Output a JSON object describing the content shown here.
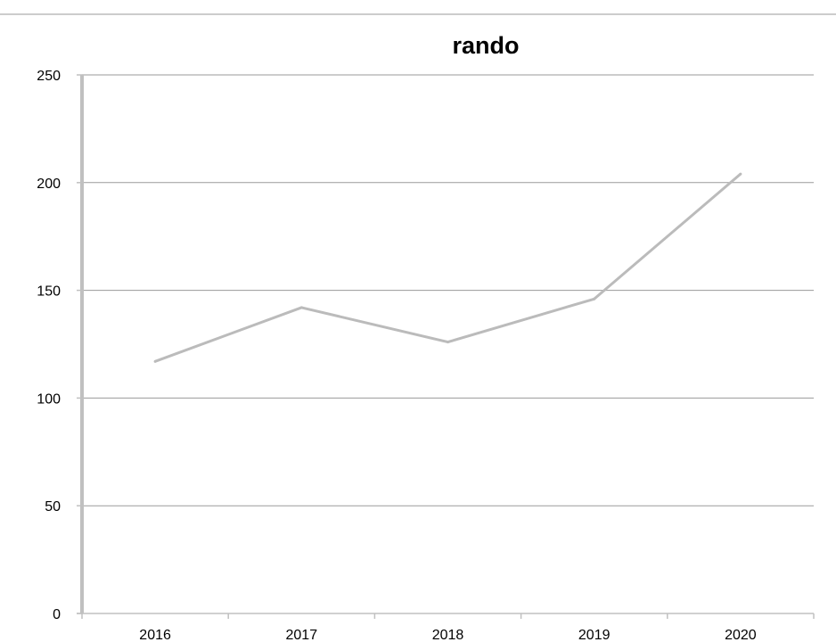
{
  "chart_data": {
    "type": "line",
    "title": "rando",
    "xlabel": "",
    "ylabel": "",
    "categories": [
      "2016",
      "2017",
      "2018",
      "2019",
      "2020"
    ],
    "series": [
      {
        "values": [
          117,
          142,
          126,
          146,
          204
        ]
      }
    ],
    "ylim": [
      0,
      250
    ],
    "yticks": [
      0,
      50,
      100,
      150,
      200,
      250
    ],
    "grid": true,
    "legend": "none",
    "colors": {
      "line": "#bbbbbb",
      "grid": "#9a9a9a",
      "axis": "#c0c0c0",
      "frame": "#999999"
    }
  }
}
